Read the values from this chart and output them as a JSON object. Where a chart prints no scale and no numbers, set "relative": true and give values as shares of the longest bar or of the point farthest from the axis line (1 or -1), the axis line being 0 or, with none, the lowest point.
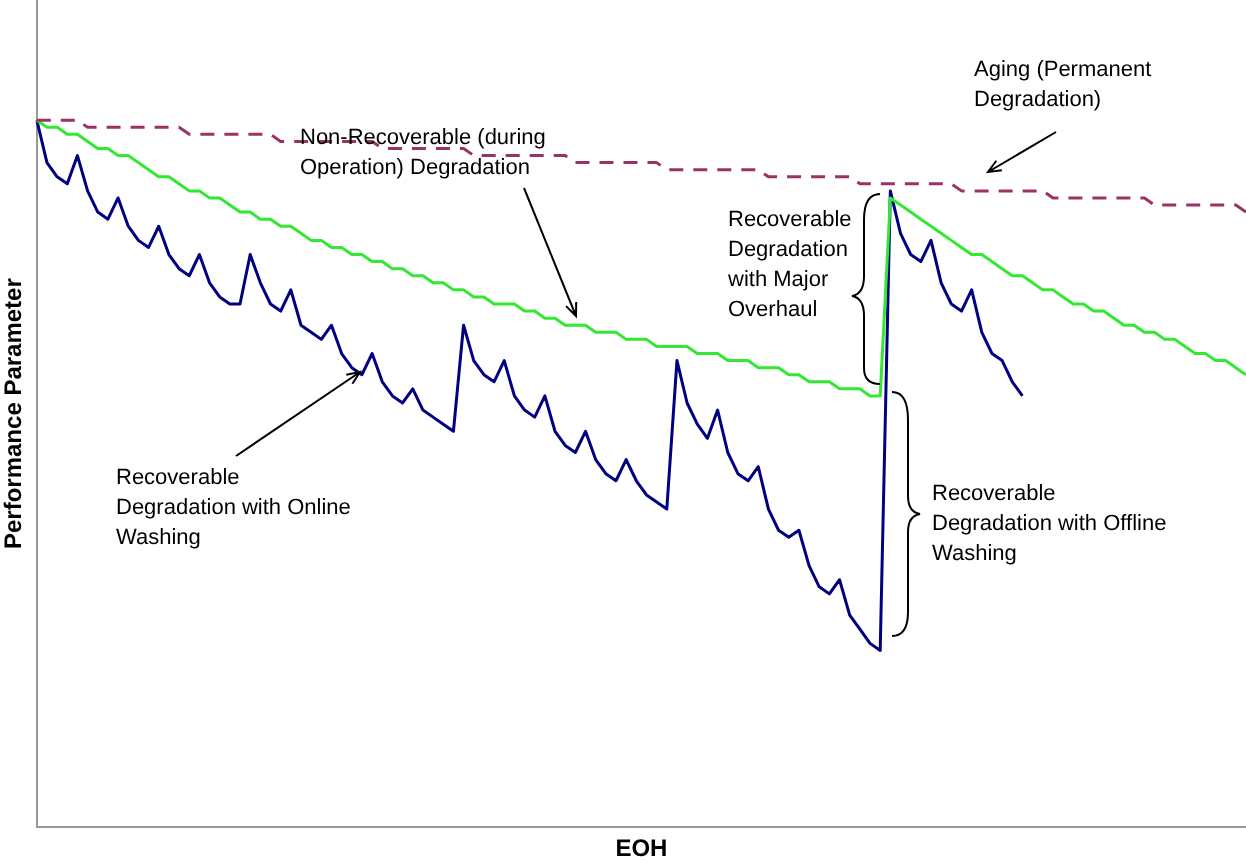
{
  "chart_data": {
    "type": "line",
    "relative": true,
    "xlabel": "EOH",
    "ylabel": "Performance Parameter",
    "legend": false,
    "marker": "none",
    "categories": [
      null,
      null,
      null,
      null,
      null,
      null,
      null,
      null,
      null,
      null,
      null,
      null,
      null,
      null,
      null,
      null,
      null,
      null,
      null,
      null,
      null,
      null,
      null,
      null,
      null,
      null,
      null,
      null,
      null,
      null,
      null,
      null,
      null,
      null,
      null,
      null,
      null,
      null,
      null,
      null,
      null,
      null,
      null,
      null,
      null,
      null,
      null,
      null,
      null,
      null,
      null,
      null,
      null,
      null,
      null,
      null,
      null,
      null,
      null,
      null,
      null,
      null,
      null,
      null,
      null,
      null,
      null,
      null,
      null,
      null,
      null,
      null,
      null,
      null,
      null,
      null,
      null,
      null,
      null,
      null,
      null,
      null,
      null,
      null,
      null,
      null,
      null,
      null,
      null,
      null,
      null,
      null,
      null,
      null,
      null,
      null,
      null,
      null,
      null,
      null,
      null,
      null,
      null,
      null,
      null,
      null,
      null,
      null,
      null,
      null,
      null,
      null,
      null,
      null,
      null,
      null,
      null,
      null,
      null,
      null
    ],
    "series": [
      {
        "color": "#993366",
        "line_style": "dashed",
        "values": [
          1.0,
          1.0,
          1.0,
          1.0,
          1.0,
          0.99,
          0.99,
          0.99,
          0.99,
          0.99,
          0.99,
          0.99,
          0.99,
          0.99,
          0.99,
          0.98,
          0.98,
          0.98,
          0.98,
          0.98,
          0.98,
          0.98,
          0.98,
          0.98,
          0.97,
          0.97,
          0.97,
          0.97,
          0.97,
          0.97,
          0.97,
          0.97,
          0.97,
          0.97,
          0.96,
          0.96,
          0.96,
          0.96,
          0.96,
          0.96,
          0.96,
          0.96,
          0.96,
          0.95,
          0.95,
          0.95,
          0.95,
          0.95,
          0.95,
          0.95,
          0.95,
          0.95,
          0.95,
          0.94,
          0.94,
          0.94,
          0.94,
          0.94,
          0.94,
          0.94,
          0.94,
          0.94,
          0.93,
          0.93,
          0.93,
          0.93,
          0.93,
          0.93,
          0.93,
          0.93,
          0.93,
          0.93,
          0.92,
          0.92,
          0.92,
          0.92,
          0.92,
          0.92,
          0.92,
          0.92,
          0.92,
          0.91,
          0.91,
          0.91,
          0.91,
          0.91,
          0.91,
          0.91,
          0.91,
          0.91,
          0.91,
          0.9,
          0.9,
          0.9,
          0.9,
          0.9,
          0.9,
          0.9,
          0.9,
          0.9,
          0.89,
          0.89,
          0.89,
          0.89,
          0.89,
          0.89,
          0.89,
          0.89,
          0.89,
          0.89,
          0.88,
          0.88,
          0.88,
          0.88,
          0.88,
          0.88,
          0.88,
          0.88,
          0.88,
          0.87
        ]
      },
      {
        "color": "#33e833",
        "line_style": "solid",
        "values": [
          1.0,
          0.99,
          0.99,
          0.98,
          0.98,
          0.97,
          0.96,
          0.96,
          0.95,
          0.95,
          0.94,
          0.93,
          0.92,
          0.92,
          0.91,
          0.9,
          0.9,
          0.89,
          0.89,
          0.88,
          0.87,
          0.87,
          0.86,
          0.86,
          0.85,
          0.85,
          0.84,
          0.83,
          0.83,
          0.82,
          0.82,
          0.81,
          0.81,
          0.8,
          0.8,
          0.79,
          0.79,
          0.78,
          0.78,
          0.77,
          0.77,
          0.76,
          0.76,
          0.75,
          0.75,
          0.74,
          0.74,
          0.74,
          0.73,
          0.73,
          0.72,
          0.72,
          0.71,
          0.71,
          0.71,
          0.7,
          0.7,
          0.7,
          0.69,
          0.69,
          0.69,
          0.68,
          0.68,
          0.68,
          0.68,
          0.67,
          0.67,
          0.67,
          0.66,
          0.66,
          0.66,
          0.65,
          0.65,
          0.65,
          0.64,
          0.64,
          0.63,
          0.63,
          0.63,
          0.62,
          0.62,
          0.62,
          0.61,
          0.61,
          0.89,
          0.88,
          0.87,
          0.86,
          0.85,
          0.84,
          0.83,
          0.82,
          0.81,
          0.81,
          0.8,
          0.79,
          0.78,
          0.78,
          0.77,
          0.76,
          0.76,
          0.75,
          0.74,
          0.74,
          0.73,
          0.73,
          0.72,
          0.71,
          0.71,
          0.7,
          0.7,
          0.69,
          0.69,
          0.68,
          0.67,
          0.67,
          0.66,
          0.66,
          0.65,
          0.64
        ]
      },
      {
        "color": "#000080",
        "line_style": "solid",
        "values": [
          1.0,
          0.94,
          0.92,
          0.91,
          0.95,
          0.9,
          0.87,
          0.86,
          0.89,
          0.85,
          0.83,
          0.82,
          0.85,
          0.81,
          0.79,
          0.78,
          0.81,
          0.77,
          0.75,
          0.74,
          0.74,
          0.81,
          0.77,
          0.74,
          0.73,
          0.76,
          0.71,
          0.7,
          0.69,
          0.71,
          0.67,
          0.65,
          0.64,
          0.67,
          0.63,
          0.61,
          0.6,
          0.62,
          0.59,
          0.58,
          0.57,
          0.56,
          0.71,
          0.66,
          0.64,
          0.63,
          0.66,
          0.61,
          0.59,
          0.58,
          0.61,
          0.56,
          0.54,
          0.53,
          0.56,
          0.52,
          0.5,
          0.49,
          0.52,
          0.49,
          0.47,
          0.46,
          0.45,
          0.66,
          0.6,
          0.57,
          0.55,
          0.59,
          0.53,
          0.5,
          0.49,
          0.51,
          0.45,
          0.42,
          0.41,
          0.42,
          0.37,
          0.34,
          0.33,
          0.35,
          0.3,
          0.28,
          0.26,
          0.25,
          0.9,
          0.84,
          0.81,
          0.8,
          0.83,
          0.77,
          0.74,
          0.73,
          0.76,
          0.7,
          0.67,
          0.66,
          0.63,
          0.61,
          null,
          null,
          null,
          null,
          null,
          null,
          null,
          null,
          null,
          null,
          null,
          null,
          null,
          null,
          null,
          null,
          null,
          null,
          null,
          null,
          null,
          null
        ]
      }
    ],
    "annotations": [
      "Aging (Permanent Degradation)",
      "Non-Recoverable (during Operation) Degradation",
      "Recoverable Degradation with Major Overhaul",
      "Recoverable Degradation with Online Washing",
      "Recoverable Degradation with Offline Washing"
    ]
  }
}
